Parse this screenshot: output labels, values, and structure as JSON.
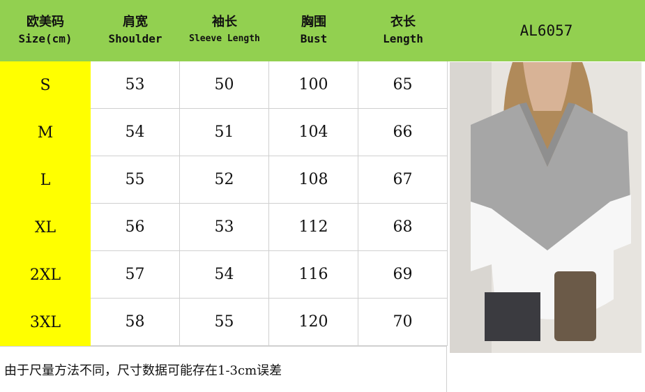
{
  "header": {
    "columns": [
      {
        "zh": "欧美码",
        "en": "Size(cm)"
      },
      {
        "zh": "肩宽",
        "en": "Shoulder"
      },
      {
        "zh": "袖长",
        "en": "Sleeve Length"
      },
      {
        "zh": "胸围",
        "en": "Bust"
      },
      {
        "zh": "衣长",
        "en": "Length"
      }
    ],
    "model": "AL6057"
  },
  "rows": [
    {
      "size": "S",
      "shoulder": "53",
      "sleeve": "50",
      "bust": "100",
      "length": "65"
    },
    {
      "size": "M",
      "shoulder": "54",
      "sleeve": "51",
      "bust": "104",
      "length": "66"
    },
    {
      "size": "L",
      "shoulder": "55",
      "sleeve": "52",
      "bust": "108",
      "length": "67"
    },
    {
      "size": "XL",
      "shoulder": "56",
      "sleeve": "53",
      "bust": "112",
      "length": "68"
    },
    {
      "size": "2XL",
      "shoulder": "57",
      "sleeve": "54",
      "bust": "116",
      "length": "69"
    },
    {
      "size": "3XL",
      "shoulder": "58",
      "sleeve": "55",
      "bust": "120",
      "length": "70"
    }
  ],
  "footer_note": "由于尺量方法不同，尺寸数据可能存在1-3cm误差",
  "colors": {
    "header": "#92d050",
    "size_column": "#ffff00"
  }
}
